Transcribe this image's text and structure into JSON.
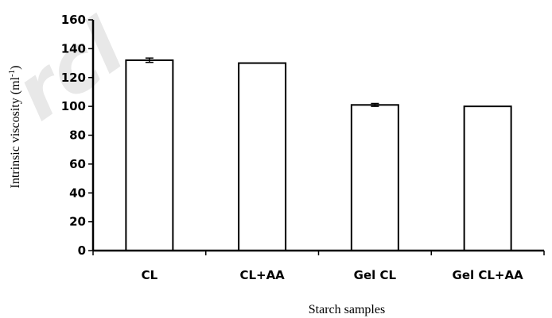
{
  "chart_data": {
    "type": "bar",
    "categories": [
      "CL",
      "CL+AA",
      "Gel CL",
      "Gel CL+AA"
    ],
    "values": [
      132,
      130,
      101,
      100
    ],
    "error": [
      1.5,
      0,
      1.0,
      0
    ],
    "xlabel": "Starch samples",
    "ylabel": "Intrinsic viscosity (ml",
    "ylabel_unit_superscript": "-1",
    "ylabel_close": ")",
    "ylim": [
      0,
      160
    ],
    "yticks": [
      0,
      20,
      40,
      60,
      80,
      100,
      120,
      140,
      160
    ],
    "grid": false,
    "legend": "none",
    "bar_fill": "#ffffff",
    "bar_edge": "#000000"
  },
  "watermark": {
    "text": "rcl",
    "color": "#e8e8e8"
  }
}
